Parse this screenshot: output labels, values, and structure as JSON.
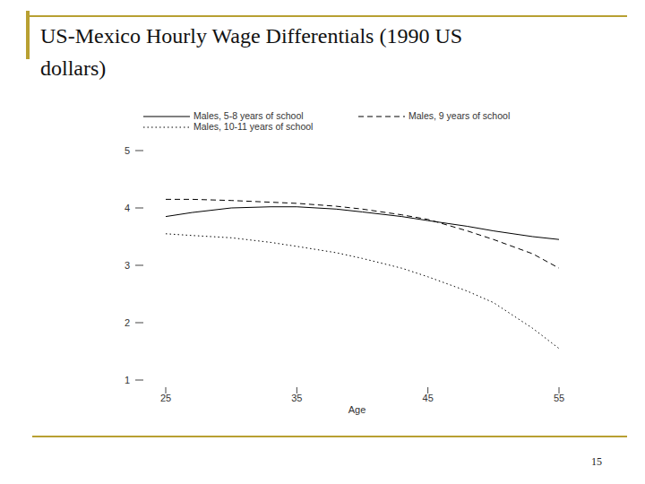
{
  "chart_data": {
    "type": "line",
    "title": "US-Mexico Hourly Wage Differentials (1990 US dollars)",
    "x_label": "Age",
    "x": [
      25,
      27,
      30,
      33,
      35,
      38,
      40,
      43,
      45,
      48,
      50,
      53,
      55
    ],
    "series": [
      {
        "name": "Males, 5-8 years of school",
        "color": "#000000",
        "line_style": "solid",
        "values": [
          3.85,
          3.92,
          4.0,
          4.02,
          4.02,
          3.98,
          3.93,
          3.85,
          3.78,
          3.68,
          3.6,
          3.5,
          3.45
        ]
      },
      {
        "name": "Males, 9 years of school",
        "color": "#000000",
        "line_style": "dashed",
        "values": [
          4.15,
          4.15,
          4.13,
          4.1,
          4.08,
          4.03,
          3.98,
          3.88,
          3.8,
          3.6,
          3.45,
          3.2,
          2.95
        ]
      },
      {
        "name": "Males, 10-11 years of school",
        "color": "#000000",
        "line_style": "dotted",
        "values": [
          3.55,
          3.52,
          3.48,
          3.4,
          3.33,
          3.22,
          3.12,
          2.95,
          2.8,
          2.55,
          2.35,
          1.9,
          1.55
        ]
      }
    ],
    "xlim": [
      25,
      55
    ],
    "xticks": [
      25,
      35,
      45,
      55
    ],
    "ylim": [
      1,
      5
    ],
    "yticks": [
      1,
      2,
      3,
      4,
      5
    ],
    "legend": "top",
    "grid": false
  },
  "page_number": "15"
}
